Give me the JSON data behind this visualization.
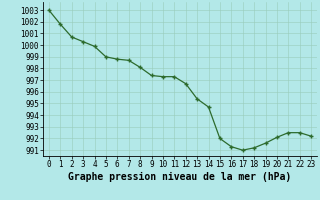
{
  "x": [
    0,
    1,
    2,
    3,
    4,
    5,
    6,
    7,
    8,
    9,
    10,
    11,
    12,
    13,
    14,
    15,
    16,
    17,
    18,
    19,
    20,
    21,
    22,
    23
  ],
  "y": [
    1003.0,
    1001.8,
    1000.7,
    1000.3,
    999.9,
    999.0,
    998.8,
    998.7,
    998.1,
    997.4,
    997.3,
    997.3,
    996.7,
    995.4,
    994.7,
    992.0,
    991.3,
    991.0,
    991.2,
    991.6,
    992.1,
    992.5,
    992.5,
    992.2
  ],
  "line_color": "#2d6b2d",
  "marker_color": "#2d6b2d",
  "bg_color": "#b3e8e8",
  "grid_color": "#99ccbb",
  "xlabel": "Graphe pression niveau de la mer (hPa)",
  "xlabel_fontsize": 7,
  "ylabel_ticks": [
    991,
    992,
    993,
    994,
    995,
    996,
    997,
    998,
    999,
    1000,
    1001,
    1002,
    1003
  ],
  "ylim": [
    990.5,
    1003.7
  ],
  "xlim": [
    -0.5,
    23.5
  ],
  "tick_fontsize": 5.5
}
